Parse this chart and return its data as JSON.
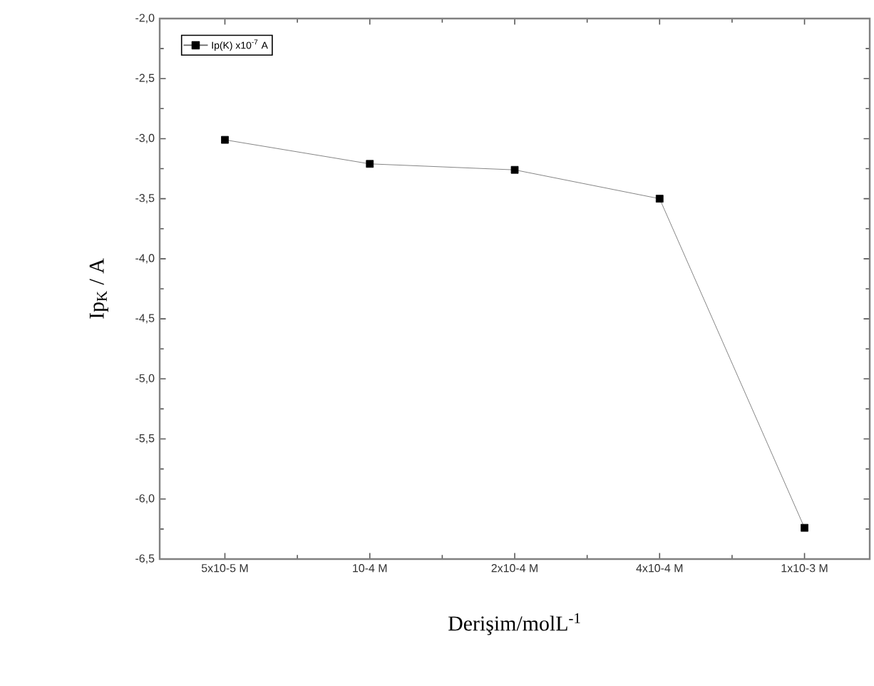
{
  "chart_data": {
    "type": "line",
    "xlabel": "Derişim/molL$^{-1}$",
    "ylabel": "Ip$_{K}$ / A",
    "categories": [
      "5x10-5 M",
      "10-4 M",
      "2x10-4 M",
      "4x10-4 M",
      "1x10-3 M"
    ],
    "series": [
      {
        "name": "Ip(K) x10$^{-7}$ A",
        "color": "#000000",
        "values": [
          -3.01,
          -3.21,
          -3.26,
          -3.5,
          -6.24
        ]
      }
    ],
    "ylim": [
      -6.5,
      -2.0
    ],
    "yticks": [
      {
        "value": -6.5,
        "label": "-6,5"
      },
      {
        "value": -6.0,
        "label": "-6,0"
      },
      {
        "value": -5.5,
        "label": "-5,5"
      },
      {
        "value": -5.0,
        "label": "-5,0"
      },
      {
        "value": -4.5,
        "label": "-4,5"
      },
      {
        "value": -4.0,
        "label": "-4,0"
      },
      {
        "value": -3.5,
        "label": "-3,5"
      },
      {
        "value": -3.0,
        "label": "-3,0"
      },
      {
        "value": -2.5,
        "label": "-2,5"
      },
      {
        "value": -2.0,
        "label": "-2,0"
      }
    ],
    "marker": "square",
    "line_style": "solid",
    "legend": "top left",
    "grid": false
  }
}
